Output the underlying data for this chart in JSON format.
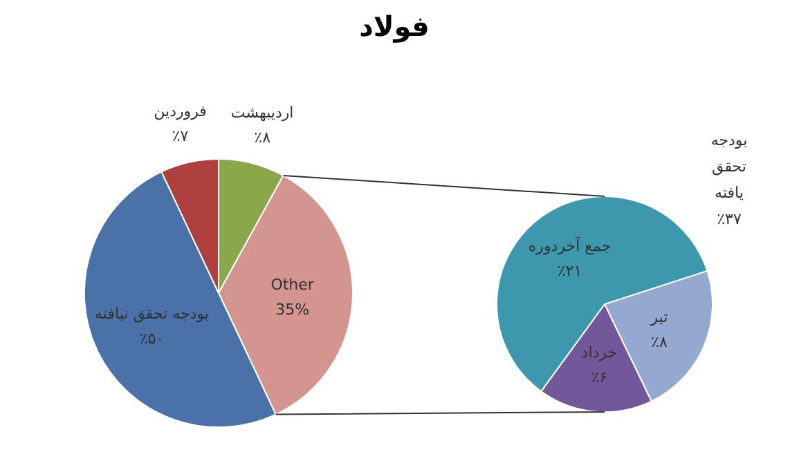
{
  "chart_data": [
    {
      "type": "pie",
      "title": "فولاد",
      "categories": [
        "اردیبهشت",
        "Other",
        "بودجه تحقق نیافته",
        "فروردین"
      ],
      "values": [
        8,
        35,
        50,
        7
      ],
      "colors": [
        "#8aa84a",
        "#d49590",
        "#4a72a8",
        "#b04040"
      ],
      "value_labels": [
        "٪۸",
        "35%",
        "٪۵۰",
        "٪۷"
      ],
      "legend": false
    },
    {
      "type": "pie",
      "categories": [
        "تیر",
        "خرداد",
        "جمع آخردوره"
      ],
      "values": [
        8,
        6,
        21
      ],
      "colors": [
        "#94a8d0",
        "#72579a",
        "#3d98ae"
      ],
      "value_labels": [
        "٪۸",
        "٪۶",
        "٪۲۱"
      ],
      "legend": false,
      "annotations": [
        "بودجه تحقق یافته ٪۳۷"
      ]
    }
  ]
}
